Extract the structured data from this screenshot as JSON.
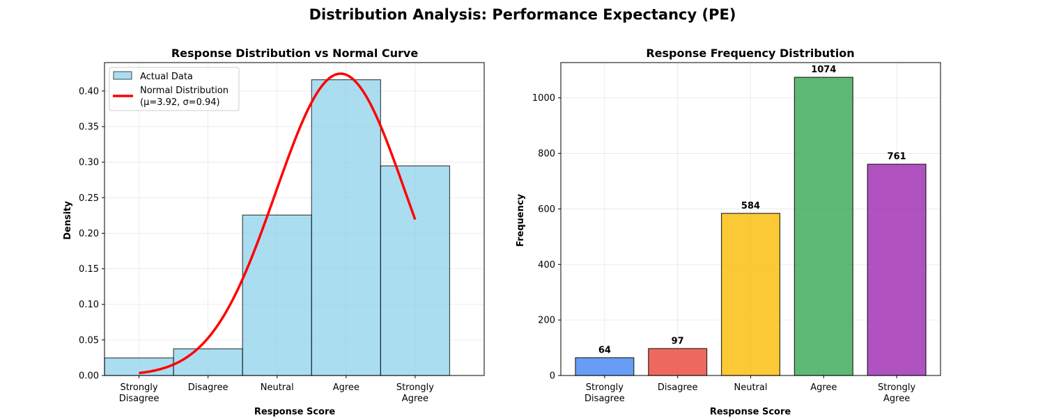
{
  "figure": {
    "suptitle": "Distribution Analysis: Performance Expectancy (PE)"
  },
  "chart_data": [
    {
      "type": "bar",
      "title": "Response Distribution vs Normal Curve",
      "xlabel": "Response Score",
      "ylabel": "Density",
      "categories": [
        [
          "Strongly",
          "Disagree"
        ],
        [
          "Disagree"
        ],
        [
          "Neutral"
        ],
        [
          "Agree"
        ],
        [
          "Strongly",
          "Agree"
        ]
      ],
      "x_values": [
        1,
        2,
        3,
        4,
        5
      ],
      "xlim": [
        0.5,
        6.0
      ],
      "ylim": [
        0,
        0.44
      ],
      "yticks": [
        "0.00",
        "0.05",
        "0.10",
        "0.15",
        "0.20",
        "0.25",
        "0.30",
        "0.35",
        "0.40"
      ],
      "grid": true,
      "legend_position": "top-left",
      "series": [
        {
          "name": "Actual Data",
          "type": "histogram",
          "values": [
            0.0247,
            0.0375,
            0.2256,
            0.4159,
            0.2947
          ],
          "color": "#87CEEB"
        },
        {
          "name": "Normal Distribution",
          "name_line2": "(μ=3.92, σ=0.94)",
          "type": "line",
          "mean": 3.92,
          "sd": 0.94,
          "x_range": [
            1,
            5
          ],
          "color": "#FF0000"
        }
      ]
    },
    {
      "type": "bar",
      "title": "Response Frequency Distribution",
      "xlabel": "Response Score",
      "ylabel": "Frequency",
      "categories": [
        [
          "Strongly",
          "Disagree"
        ],
        [
          "Disagree"
        ],
        [
          "Neutral"
        ],
        [
          "Agree"
        ],
        [
          "Strongly",
          "Agree"
        ]
      ],
      "values": [
        64,
        97,
        584,
        1074,
        761
      ],
      "colors": [
        "#4285F4",
        "#EA4335",
        "#FBBC04",
        "#34A853",
        "#9C27B0"
      ],
      "ylim": [
        0,
        1127
      ],
      "yticks": [
        0,
        200,
        400,
        600,
        800,
        1000
      ],
      "grid": true
    }
  ]
}
